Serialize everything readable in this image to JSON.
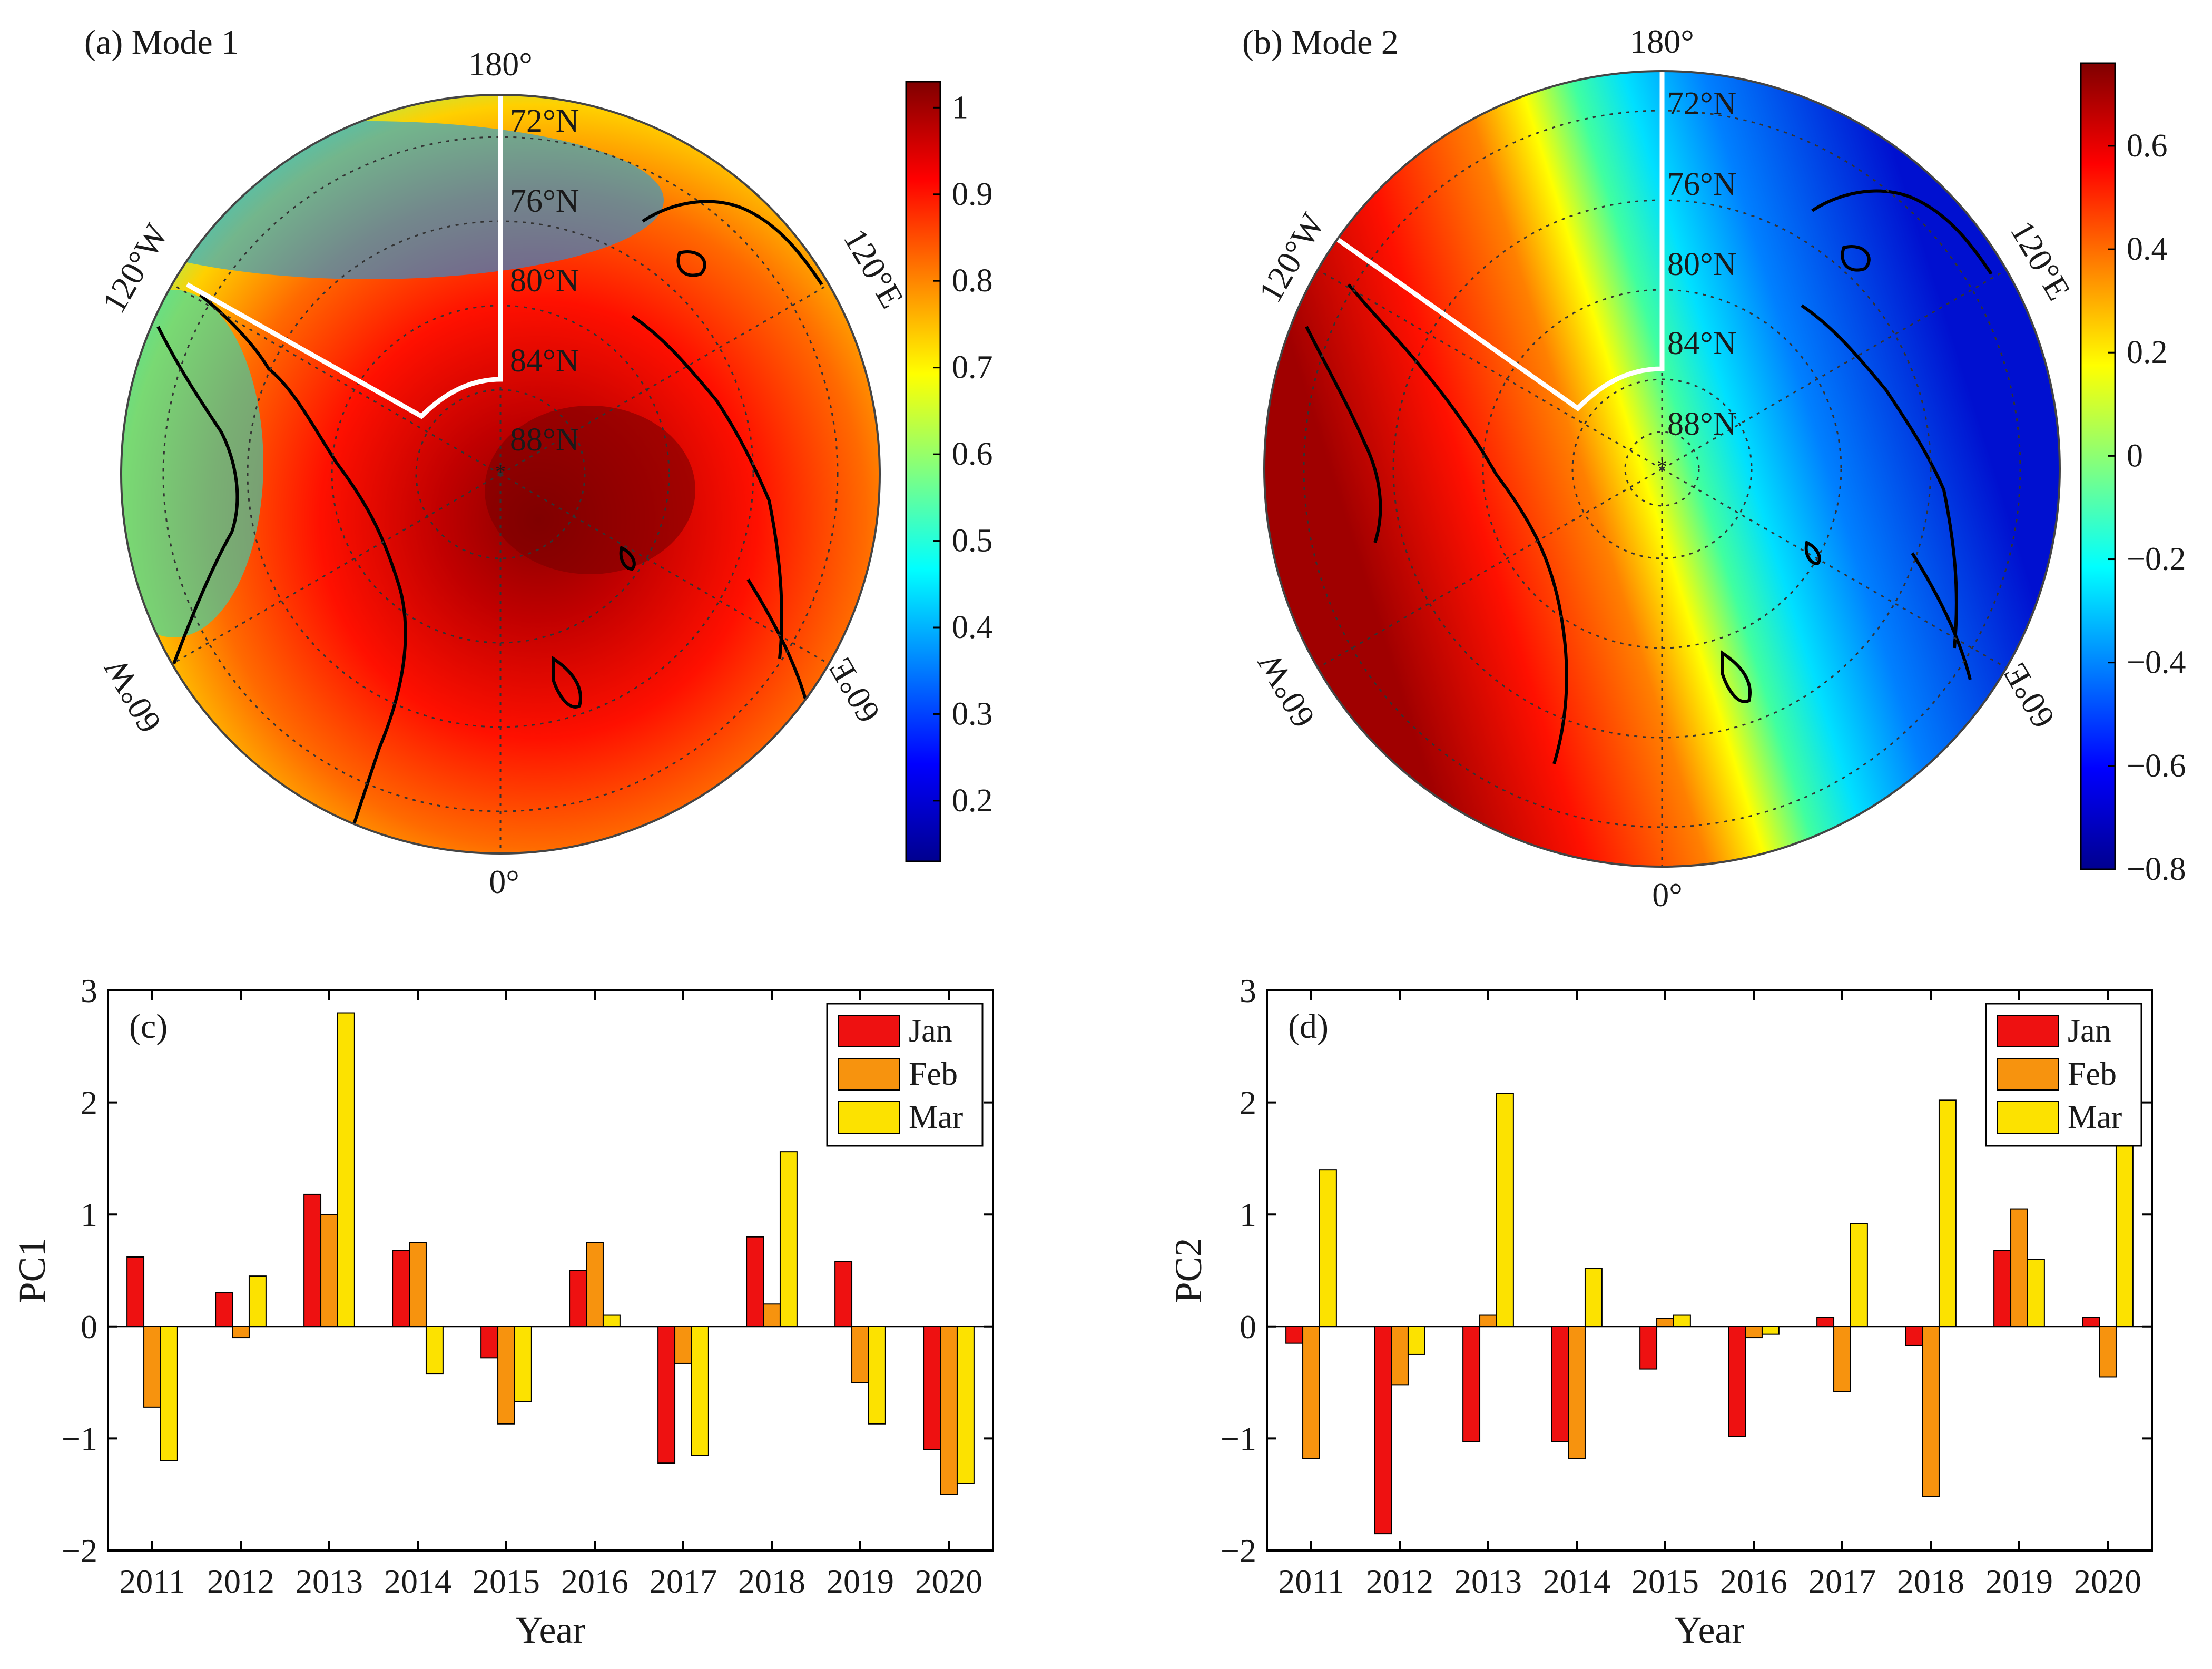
{
  "panels": {
    "a": {
      "label": "(a) Mode 1"
    },
    "b": {
      "label": "(b) Mode 2"
    }
  },
  "maps": {
    "lat_labels": [
      "72°N",
      "76°N",
      "80°N",
      "84°N",
      "88°N"
    ],
    "lon_labels": {
      "top": "180°",
      "bottom": "0°",
      "upper_left": "120°W",
      "upper_right": "120°E",
      "lower_left": "60°W",
      "lower_right": "60°E"
    }
  },
  "colorbars": [
    {
      "panel": "a",
      "ticks": [
        "1",
        "0.9",
        "0.8",
        "0.7",
        "0.6",
        "0.5",
        "0.4",
        "0.3",
        "0.2"
      ],
      "tick_values": [
        1,
        0.9,
        0.8,
        0.7,
        0.6,
        0.5,
        0.4,
        0.3,
        0.2
      ],
      "range": [
        0.13,
        1.03
      ]
    },
    {
      "panel": "b",
      "ticks": [
        "0.6",
        "0.4",
        "0.2",
        "0",
        "−0.2",
        "−0.4",
        "−0.6",
        "−0.8"
      ],
      "tick_values": [
        0.6,
        0.4,
        0.2,
        0,
        -0.2,
        -0.4,
        -0.6,
        -0.8
      ],
      "range": [
        -0.8,
        0.76
      ]
    }
  ],
  "colors": {
    "jet": [
      "#00008f",
      "#0000ff",
      "#0080ff",
      "#00ffff",
      "#80ff80",
      "#ffff00",
      "#ff8000",
      "#ff0000",
      "#800000"
    ]
  },
  "chart_data": [
    {
      "panel": "c",
      "type": "bar",
      "title": "(c)",
      "xlabel": "Year",
      "ylabel": "PC1",
      "ylim": [
        -2,
        3
      ],
      "yticks": [
        "3",
        "2",
        "1",
        "0",
        "−1",
        "−2"
      ],
      "ytick_values": [
        3,
        2,
        1,
        0,
        -1,
        -2
      ],
      "categories": [
        "2011",
        "2012",
        "2013",
        "2014",
        "2015",
        "2016",
        "2017",
        "2018",
        "2019",
        "2020"
      ],
      "legend_position": "top-right",
      "series": [
        {
          "name": "Jan",
          "color": "#ee1111",
          "values": [
            0.62,
            0.3,
            1.18,
            0.68,
            -0.28,
            0.5,
            -1.22,
            0.8,
            0.58,
            -1.1
          ]
        },
        {
          "name": "Feb",
          "color": "#f7930e",
          "values": [
            -0.72,
            -0.1,
            1.0,
            0.75,
            -0.87,
            0.75,
            -0.33,
            0.2,
            -0.5,
            -1.5
          ]
        },
        {
          "name": "Mar",
          "color": "#fce200",
          "values": [
            -1.2,
            0.45,
            2.8,
            -0.42,
            -0.67,
            0.1,
            -1.15,
            1.56,
            -0.87,
            -1.4
          ]
        }
      ]
    },
    {
      "panel": "d",
      "type": "bar",
      "title": "(d)",
      "xlabel": "Year",
      "ylabel": "PC2",
      "ylim": [
        -2,
        3
      ],
      "yticks": [
        "3",
        "2",
        "1",
        "0",
        "−1",
        "−2"
      ],
      "ytick_values": [
        3,
        2,
        1,
        0,
        -1,
        -2
      ],
      "categories": [
        "2011",
        "2012",
        "2013",
        "2014",
        "2015",
        "2016",
        "2017",
        "2018",
        "2019",
        "2020"
      ],
      "legend_position": "top-right",
      "series": [
        {
          "name": "Jan",
          "color": "#ee1111",
          "values": [
            -0.15,
            -1.85,
            -1.03,
            -1.03,
            -0.38,
            -0.98,
            0.08,
            -0.17,
            0.68,
            0.08
          ]
        },
        {
          "name": "Feb",
          "color": "#f7930e",
          "values": [
            -1.18,
            -0.52,
            0.1,
            -1.18,
            0.07,
            -0.1,
            -0.58,
            -1.52,
            1.05,
            -0.45
          ]
        },
        {
          "name": "Mar",
          "color": "#fce200",
          "values": [
            1.4,
            -0.25,
            2.08,
            0.52,
            0.1,
            -0.07,
            0.92,
            2.02,
            0.6,
            1.65
          ]
        }
      ]
    }
  ]
}
